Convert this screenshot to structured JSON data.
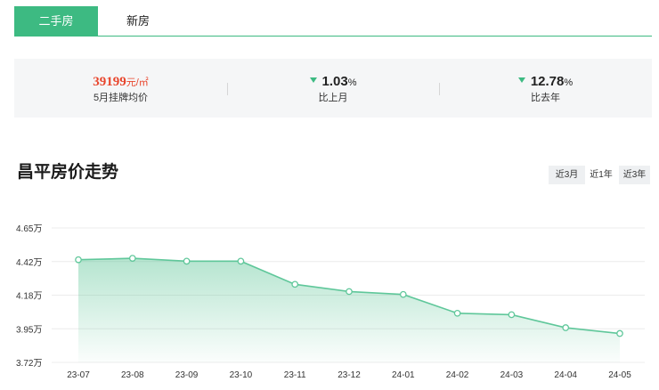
{
  "tabs": [
    {
      "label": "二手房",
      "active": true
    },
    {
      "label": "新房",
      "active": false
    }
  ],
  "stats": {
    "price": {
      "value": "39199",
      "unit": "元/㎡",
      "label": "5月挂牌均价"
    },
    "mom": {
      "value": "1.03",
      "unit": "%",
      "label": "比上月",
      "direction": "down"
    },
    "yoy": {
      "value": "12.78",
      "unit": "%",
      "label": "比去年",
      "direction": "down"
    }
  },
  "title": "昌平房价走势",
  "range_buttons": [
    "近3月",
    "近1年",
    "近3年"
  ],
  "selected_range": "近1年",
  "colors": {
    "accent": "#3dba82",
    "price": "#e8452c",
    "line": "#5fc79a"
  },
  "chart_data": {
    "type": "area",
    "categories": [
      "23-07",
      "23-08",
      "23-09",
      "23-10",
      "23-11",
      "23-12",
      "24-01",
      "24-02",
      "24-03",
      "24-04",
      "24-05"
    ],
    "series": [
      {
        "values": [
          4.43,
          4.44,
          4.42,
          4.42,
          4.26,
          4.21,
          4.19,
          4.06,
          4.05,
          3.96,
          3.92
        ]
      }
    ],
    "y_ticks": [
      "4.65万",
      "4.42万",
      "4.18万",
      "3.95万",
      "3.72万"
    ],
    "ylim": [
      3.72,
      4.65
    ],
    "grid": true,
    "xlabel": "",
    "ylabel": ""
  }
}
